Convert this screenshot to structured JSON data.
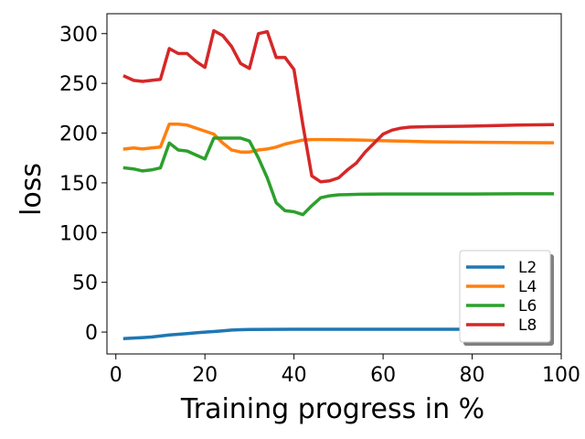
{
  "chart_data": {
    "type": "line",
    "title": "",
    "xlabel": "Training progress in %",
    "ylabel": "loss",
    "xlim": [
      -2,
      100
    ],
    "ylim": [
      -22,
      320
    ],
    "xticks": [
      0,
      20,
      40,
      60,
      80,
      100
    ],
    "yticks": [
      0,
      50,
      100,
      150,
      200,
      250,
      300
    ],
    "grid": false,
    "legend_position": "lower-right",
    "series": [
      {
        "name": "L2",
        "color": "#1f77b4",
        "x": [
          2,
          4,
          6,
          8,
          10,
          12,
          14,
          16,
          18,
          20,
          22,
          24,
          26,
          28,
          30,
          40,
          50,
          60,
          70,
          80,
          90,
          98
        ],
        "y": [
          -6.5,
          -6,
          -5.5,
          -5,
          -4,
          -3,
          -2.2,
          -1.5,
          -0.8,
          0,
          0.5,
          1.2,
          2,
          2.4,
          2.6,
          2.8,
          2.8,
          2.8,
          2.8,
          2.8,
          2.8,
          2.8
        ]
      },
      {
        "name": "L4",
        "color": "#ff7f0e",
        "x": [
          2,
          4,
          6,
          8,
          10,
          12,
          14,
          16,
          18,
          20,
          22,
          24,
          26,
          28,
          30,
          32,
          34,
          36,
          38,
          40,
          42,
          44,
          46,
          50,
          55,
          60,
          65,
          70,
          80,
          90,
          98
        ],
        "y": [
          184,
          185,
          184,
          185,
          186,
          209,
          209,
          208,
          205,
          202,
          199,
          190,
          183,
          181,
          181,
          183,
          184,
          186,
          189,
          191,
          193,
          193.5,
          193.5,
          193.3,
          193,
          192.3,
          191.8,
          191.3,
          190.8,
          190.5,
          190.3
        ]
      },
      {
        "name": "L6",
        "color": "#2ca02c",
        "x": [
          2,
          4,
          6,
          8,
          10,
          12,
          14,
          16,
          18,
          20,
          22,
          24,
          26,
          28,
          30,
          32,
          34,
          36,
          38,
          40,
          42,
          44,
          46,
          48,
          50,
          55,
          60,
          70,
          80,
          90,
          98
        ],
        "y": [
          165,
          164,
          162,
          163,
          165,
          190,
          183,
          182,
          178,
          174,
          195,
          195,
          195,
          195,
          192,
          175,
          155,
          130,
          122,
          121,
          118,
          127,
          135,
          137,
          138,
          138.5,
          138.8,
          138.8,
          138.8,
          139,
          139
        ]
      },
      {
        "name": "L8",
        "color": "#d62728",
        "x": [
          2,
          4,
          6,
          8,
          10,
          12,
          14,
          16,
          18,
          20,
          22,
          24,
          26,
          28,
          30,
          32,
          34,
          36,
          38,
          40,
          42,
          44,
          46,
          48,
          50,
          52,
          54,
          56,
          58,
          60,
          62,
          64,
          66,
          70,
          80,
          90,
          98
        ],
        "y": [
          257,
          253,
          252,
          253,
          254,
          285,
          280,
          280,
          272,
          266,
          303,
          298,
          287,
          270,
          265,
          300,
          302,
          276,
          276,
          264,
          208,
          157,
          151,
          152,
          155,
          163,
          170,
          181,
          190,
          199,
          203,
          205,
          206,
          206.5,
          207,
          208,
          208.5
        ]
      }
    ]
  }
}
